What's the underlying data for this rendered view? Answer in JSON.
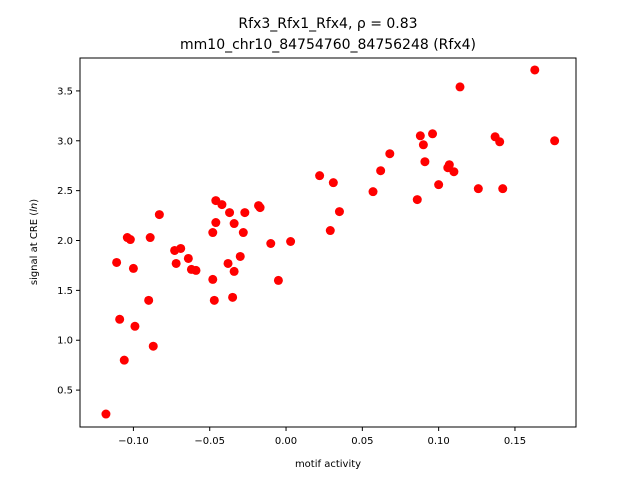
{
  "chart_data": {
    "type": "scatter",
    "title_line1": "Rfx3_Rfx1_Rfx4, ρ = 0.83",
    "title_line2": "mm10_chr10_84754760_84756248 (Rfx4)",
    "xlabel": "motif activity",
    "ylabel": "signal at CRE (ln)",
    "xlim": [
      -0.135,
      0.19
    ],
    "ylim": [
      0.13,
      3.83
    ],
    "xticks": [
      -0.1,
      -0.05,
      0.0,
      0.05,
      0.1,
      0.15
    ],
    "xtick_labels": [
      "−0.10",
      "−0.05",
      "0.00",
      "0.05",
      "0.10",
      "0.15"
    ],
    "yticks": [
      0.5,
      1.0,
      1.5,
      2.0,
      2.5,
      3.0,
      3.5
    ],
    "ytick_labels": [
      "0.5",
      "1.0",
      "1.5",
      "2.0",
      "2.5",
      "3.0",
      "3.5"
    ],
    "marker_color": "#ff0000",
    "grid": false,
    "points": [
      [
        -0.118,
        0.26
      ],
      [
        -0.111,
        1.78
      ],
      [
        -0.109,
        1.21
      ],
      [
        -0.106,
        0.8
      ],
      [
        -0.104,
        2.03
      ],
      [
        -0.102,
        2.01
      ],
      [
        -0.1,
        1.72
      ],
      [
        -0.099,
        1.14
      ],
      [
        -0.09,
        1.4
      ],
      [
        -0.089,
        2.03
      ],
      [
        -0.087,
        0.94
      ],
      [
        -0.083,
        2.26
      ],
      [
        -0.073,
        1.9
      ],
      [
        -0.072,
        1.77
      ],
      [
        -0.069,
        1.92
      ],
      [
        -0.064,
        1.82
      ],
      [
        -0.062,
        1.71
      ],
      [
        -0.059,
        1.7
      ],
      [
        -0.048,
        1.61
      ],
      [
        -0.048,
        2.08
      ],
      [
        -0.047,
        1.4
      ],
      [
        -0.046,
        2.4
      ],
      [
        -0.046,
        2.18
      ],
      [
        -0.042,
        2.36
      ],
      [
        -0.038,
        1.77
      ],
      [
        -0.037,
        2.28
      ],
      [
        -0.035,
        1.43
      ],
      [
        -0.034,
        2.17
      ],
      [
        -0.034,
        1.69
      ],
      [
        -0.03,
        1.84
      ],
      [
        -0.028,
        2.08
      ],
      [
        -0.027,
        2.28
      ],
      [
        -0.018,
        2.35
      ],
      [
        -0.017,
        2.33
      ],
      [
        -0.01,
        1.97
      ],
      [
        -0.005,
        1.6
      ],
      [
        0.003,
        1.99
      ],
      [
        0.022,
        2.65
      ],
      [
        0.029,
        2.1
      ],
      [
        0.031,
        2.58
      ],
      [
        0.035,
        2.29
      ],
      [
        0.057,
        2.49
      ],
      [
        0.062,
        2.7
      ],
      [
        0.068,
        2.87
      ],
      [
        0.086,
        2.41
      ],
      [
        0.088,
        3.05
      ],
      [
        0.09,
        2.96
      ],
      [
        0.091,
        2.79
      ],
      [
        0.096,
        3.07
      ],
      [
        0.1,
        2.56
      ],
      [
        0.106,
        2.73
      ],
      [
        0.107,
        2.76
      ],
      [
        0.11,
        2.69
      ],
      [
        0.114,
        3.54
      ],
      [
        0.126,
        2.52
      ],
      [
        0.137,
        3.04
      ],
      [
        0.14,
        2.99
      ],
      [
        0.142,
        2.52
      ],
      [
        0.163,
        3.71
      ],
      [
        0.176,
        3.0
      ]
    ]
  }
}
